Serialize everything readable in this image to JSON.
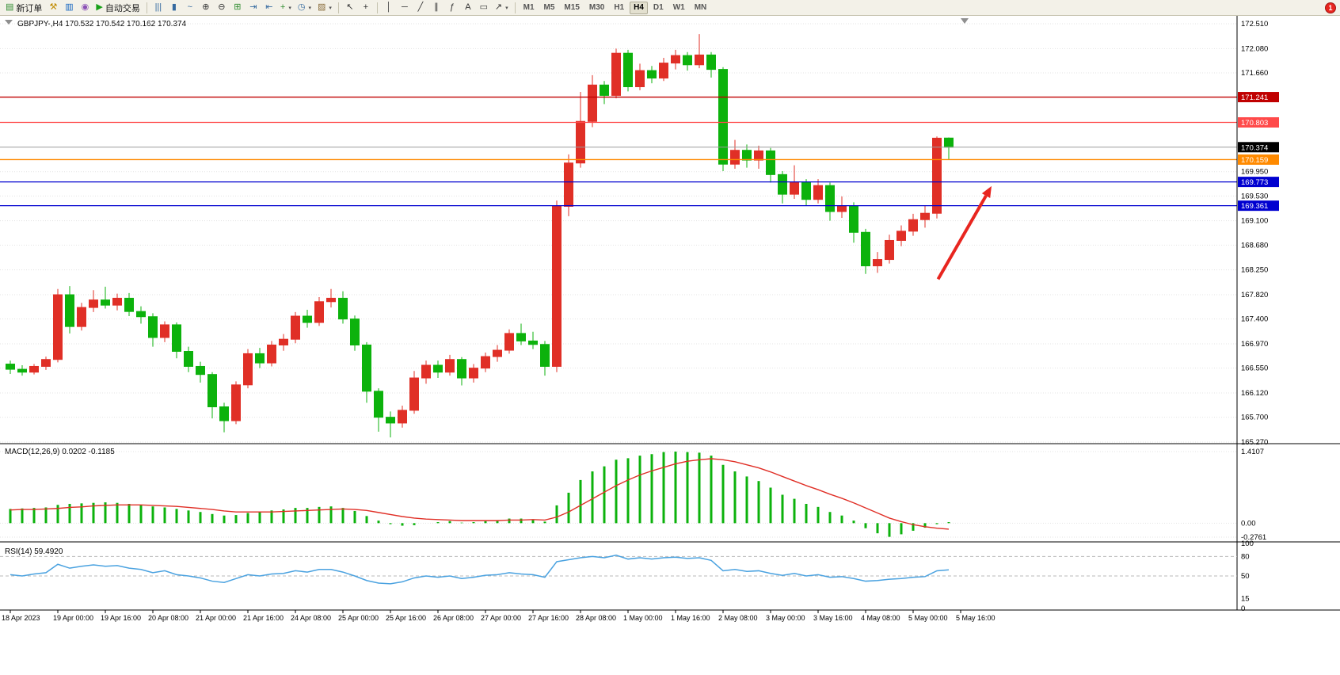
{
  "toolbar": {
    "groups": [
      {
        "name": "trade-group",
        "items": [
          {
            "name": "new-order-button",
            "icon": "new-order-icon",
            "glyph": "▤",
            "color": "#2e8b2e",
            "label": "新订单"
          },
          {
            "name": "styler-button",
            "icon": "hammer-icon",
            "glyph": "⚒",
            "color": "#c08a00"
          },
          {
            "name": "profiles-button",
            "icon": "charts-profile-icon",
            "glyph": "▥",
            "color": "#1565c0"
          },
          {
            "name": "history-button",
            "icon": "history-icon",
            "glyph": "◉",
            "color": "#8a4fb5"
          },
          {
            "name": "auto-trading-button",
            "icon": "play-icon",
            "glyph": "▶",
            "color": "#18a018",
            "label": "自动交易"
          }
        ]
      },
      {
        "name": "chart-mode-group",
        "items": [
          {
            "name": "bar-chart-button",
            "icon": "bar-chart-icon",
            "glyph": "|||",
            "color": "#356aa0"
          },
          {
            "name": "candlestick-chart-button",
            "icon": "candlestick-icon",
            "glyph": "▮",
            "color": "#356aa0"
          },
          {
            "name": "line-chart-button",
            "icon": "line-chart-icon",
            "glyph": "~",
            "color": "#356aa0"
          },
          {
            "name": "zoom-in-button",
            "icon": "zoom-in-icon",
            "glyph": "⊕",
            "color": "#333333"
          },
          {
            "name": "zoom-out-button",
            "icon": "zoom-out-icon",
            "glyph": "⊖",
            "color": "#333333"
          },
          {
            "name": "tile-windows-button",
            "icon": "tile-windows-icon",
            "glyph": "⊞",
            "color": "#2e8b2e"
          },
          {
            "name": "auto-scroll-button",
            "icon": "auto-scroll-icon",
            "glyph": "⇥",
            "color": "#356aa0"
          },
          {
            "name": "chart-shift-button",
            "icon": "chart-shift-icon",
            "glyph": "⇤",
            "color": "#356aa0"
          },
          {
            "name": "indicators-button",
            "icon": "plus-icon",
            "glyph": "+",
            "color": "#2e8b2e",
            "dropdown": true
          },
          {
            "name": "periods-button",
            "icon": "clock-icon",
            "glyph": "◷",
            "color": "#356aa0",
            "dropdown": true
          },
          {
            "name": "templates-button",
            "icon": "template-icon",
            "glyph": "▨",
            "color": "#8a6d3b",
            "dropdown": true
          }
        ]
      },
      {
        "name": "cursor-group",
        "items": [
          {
            "name": "cursor-button",
            "icon": "cursor-icon",
            "glyph": "↖",
            "color": "#333333"
          },
          {
            "name": "crosshair-button",
            "icon": "crosshair-icon",
            "glyph": "+",
            "color": "#333333"
          }
        ]
      },
      {
        "name": "draw-group",
        "items": [
          {
            "name": "vertical-line-button",
            "icon": "vertical-line-icon",
            "glyph": "│",
            "color": "#333333"
          },
          {
            "name": "horizontal-line-button",
            "icon": "horizontal-line-icon",
            "glyph": "─",
            "color": "#333333"
          },
          {
            "name": "trendline-button",
            "icon": "trendline-icon",
            "glyph": "╱",
            "color": "#333333"
          },
          {
            "name": "channel-button",
            "icon": "channel-icon",
            "glyph": "∥",
            "color": "#333333"
          },
          {
            "name": "fibonacci-button",
            "icon": "fibonacci-icon",
            "glyph": "ƒ",
            "color": "#333333"
          },
          {
            "name": "text-button",
            "icon": "text-icon",
            "glyph": "A",
            "color": "#333333"
          },
          {
            "name": "text-label-button",
            "icon": "label-icon",
            "glyph": "▭",
            "color": "#333333"
          },
          {
            "name": "arrows-button",
            "icon": "arrow-icon",
            "glyph": "↗",
            "color": "#333333",
            "dropdown": true
          }
        ]
      }
    ],
    "timeframes": [
      "M1",
      "M5",
      "M15",
      "M30",
      "H1",
      "H4",
      "D1",
      "W1",
      "MN"
    ],
    "active_timeframe": "H4",
    "notification_badge": "1"
  },
  "panels": {
    "symbol_line": "GBPJPY-,H4 170.532 170.542 170.162 170.374",
    "macd_label": "MACD(12,26,9) 0.0202 -0.1185",
    "rsi_label": "RSI(14) 59.4920"
  },
  "colors": {
    "bull": "#e02f26",
    "bear": "#0cb20c",
    "macd_hist": "#0cb20c",
    "macd_signal": "#e02f26",
    "rsi_line": "#4aa2e0",
    "grid": "#e3e3e3",
    "level_silver": "#b9b9b9",
    "bid_line": "#9b9b9b",
    "arrow": "#e8251f"
  },
  "annotation_arrow": {
    "bar_from": 78.1,
    "price_from": 168.09,
    "bar_to": 82.6,
    "price_to": 169.7
  },
  "chart_data": [
    {
      "type": "candlestick",
      "symbol": "GBPJPY-",
      "timeframe": "H4",
      "ohlc_current": {
        "open": "170.532",
        "high": "170.542",
        "low": "170.162",
        "close": "170.374"
      },
      "ylim": [
        165.27,
        172.51
      ],
      "y_ticks": [
        "172.510",
        "172.080",
        "171.660",
        "169.950",
        "169.530",
        "169.100",
        "168.680",
        "168.250",
        "167.820",
        "167.400",
        "166.970",
        "166.550",
        "166.120",
        "165.700",
        "165.270"
      ],
      "x_labels": [
        "18 Apr 2023",
        "19 Apr 00:00",
        "19 Apr 16:00",
        "20 Apr 08:00",
        "21 Apr 00:00",
        "21 Apr 16:00",
        "24 Apr 08:00",
        "25 Apr 00:00",
        "25 Apr 16:00",
        "26 Apr 08:00",
        "27 Apr 00:00",
        "27 Apr 16:00",
        "28 Apr 08:00",
        "1 May 00:00",
        "1 May 16:00",
        "2 May 08:00",
        "3 May 00:00",
        "3 May 16:00",
        "4 May 08:00",
        "5 May 00:00",
        "5 May 16:00"
      ],
      "label_every": 4,
      "candles": [
        [
          166.62,
          166.68,
          166.45,
          166.53
        ],
        [
          166.53,
          166.6,
          166.42,
          166.48
        ],
        [
          166.48,
          166.62,
          166.44,
          166.58
        ],
        [
          166.58,
          166.75,
          166.52,
          166.7
        ],
        [
          166.7,
          167.92,
          166.65,
          167.82
        ],
        [
          167.82,
          167.97,
          167.15,
          167.27
        ],
        [
          167.27,
          167.68,
          167.2,
          167.6
        ],
        [
          167.6,
          167.9,
          167.52,
          167.73
        ],
        [
          167.73,
          167.96,
          167.58,
          167.64
        ],
        [
          167.64,
          167.84,
          167.55,
          167.76
        ],
        [
          167.76,
          167.85,
          167.45,
          167.53
        ],
        [
          167.53,
          167.62,
          167.32,
          167.44
        ],
        [
          167.44,
          167.5,
          166.92,
          167.08
        ],
        [
          167.08,
          167.36,
          167.0,
          167.3
        ],
        [
          167.3,
          167.34,
          166.72,
          166.84
        ],
        [
          166.84,
          166.92,
          166.48,
          166.58
        ],
        [
          166.58,
          166.66,
          166.3,
          166.44
        ],
        [
          166.44,
          166.48,
          165.68,
          165.88
        ],
        [
          165.88,
          165.95,
          165.44,
          165.64
        ],
        [
          165.64,
          166.32,
          165.58,
          166.26
        ],
        [
          166.26,
          166.88,
          166.2,
          166.8
        ],
        [
          166.8,
          166.9,
          166.55,
          166.64
        ],
        [
          166.64,
          167.02,
          166.58,
          166.95
        ],
        [
          166.95,
          167.14,
          166.85,
          167.05
        ],
        [
          167.05,
          167.52,
          166.98,
          167.45
        ],
        [
          167.45,
          167.56,
          167.25,
          167.34
        ],
        [
          167.34,
          167.78,
          167.28,
          167.7
        ],
        [
          167.7,
          167.92,
          167.6,
          167.76
        ],
        [
          167.76,
          167.88,
          167.32,
          167.4
        ],
        [
          167.4,
          167.46,
          166.85,
          166.95
        ],
        [
          166.95,
          167.0,
          165.95,
          166.15
        ],
        [
          166.15,
          166.2,
          165.45,
          165.7
        ],
        [
          165.7,
          165.8,
          165.35,
          165.6
        ],
        [
          165.6,
          165.9,
          165.52,
          165.82
        ],
        [
          165.82,
          166.5,
          165.76,
          166.38
        ],
        [
          166.38,
          166.68,
          166.28,
          166.6
        ],
        [
          166.6,
          166.68,
          166.38,
          166.48
        ],
        [
          166.48,
          166.78,
          166.42,
          166.7
        ],
        [
          166.7,
          166.74,
          166.25,
          166.38
        ],
        [
          166.38,
          166.62,
          166.3,
          166.55
        ],
        [
          166.55,
          166.82,
          166.48,
          166.75
        ],
        [
          166.75,
          166.95,
          166.66,
          166.86
        ],
        [
          166.86,
          167.22,
          166.8,
          167.15
        ],
        [
          167.15,
          167.32,
          166.95,
          167.02
        ],
        [
          167.02,
          167.18,
          166.88,
          166.96
        ],
        [
          166.96,
          167.02,
          166.42,
          166.58
        ],
        [
          166.58,
          169.45,
          166.48,
          169.35
        ],
        [
          169.35,
          170.25,
          169.18,
          170.1
        ],
        [
          170.1,
          171.33,
          170.02,
          170.82
        ],
        [
          170.82,
          171.62,
          170.72,
          171.45
        ],
        [
          171.45,
          171.52,
          171.12,
          171.27
        ],
        [
          171.27,
          172.08,
          171.22,
          172.0
        ],
        [
          172.0,
          172.06,
          171.34,
          171.42
        ],
        [
          171.42,
          171.82,
          171.36,
          171.7
        ],
        [
          171.7,
          171.78,
          171.48,
          171.57
        ],
        [
          171.57,
          171.92,
          171.52,
          171.83
        ],
        [
          171.83,
          172.06,
          171.72,
          171.96
        ],
        [
          171.96,
          172.02,
          171.7,
          171.8
        ],
        [
          171.8,
          172.33,
          171.74,
          171.97
        ],
        [
          171.97,
          172.02,
          171.58,
          171.72
        ],
        [
          171.72,
          171.76,
          169.96,
          170.08
        ],
        [
          170.08,
          170.5,
          170.0,
          170.32
        ],
        [
          170.32,
          170.42,
          170.02,
          170.15
        ],
        [
          170.15,
          170.4,
          170.0,
          170.31
        ],
        [
          170.31,
          170.36,
          169.76,
          169.9
        ],
        [
          169.9,
          169.96,
          169.4,
          169.56
        ],
        [
          169.56,
          170.06,
          169.48,
          169.76
        ],
        [
          169.76,
          169.82,
          169.36,
          169.47
        ],
        [
          169.47,
          169.82,
          169.4,
          169.71
        ],
        [
          169.71,
          169.76,
          169.1,
          169.26
        ],
        [
          169.26,
          169.52,
          169.15,
          169.36
        ],
        [
          169.36,
          169.42,
          168.72,
          168.9
        ],
        [
          168.9,
          168.96,
          168.18,
          168.32
        ],
        [
          168.32,
          168.56,
          168.2,
          168.43
        ],
        [
          168.43,
          168.86,
          168.36,
          168.76
        ],
        [
          168.76,
          169.02,
          168.66,
          168.92
        ],
        [
          168.92,
          169.22,
          168.84,
          169.12
        ],
        [
          169.12,
          169.36,
          168.98,
          169.23
        ],
        [
          169.23,
          170.56,
          169.14,
          170.53
        ],
        [
          170.532,
          170.542,
          170.162,
          170.374
        ]
      ],
      "levels": [
        {
          "name": "resistance-line-1",
          "price": 171.241,
          "label": "171.241",
          "color": "#c00000"
        },
        {
          "name": "resistance-line-2",
          "price": 170.803,
          "label": "170.803",
          "color": "#ff4a4a"
        },
        {
          "name": "bid-price-line",
          "price": 170.374,
          "label": "170.374",
          "color": "#9b9b9b",
          "tag": "#000000",
          "bid": true
        },
        {
          "name": "pivot-line",
          "price": 170.159,
          "label": "170.159",
          "color": "#ff8a00"
        },
        {
          "name": "support-line-1",
          "price": 169.773,
          "label": "169.773",
          "color": "#0000d0"
        },
        {
          "name": "support-line-2",
          "price": 169.361,
          "label": "169.361",
          "color": "#0000d0"
        }
      ]
    },
    {
      "type": "macd",
      "name": "MACD(12,26,9)",
      "value": 0.0202,
      "signal_value": -0.1185,
      "ylim": [
        -0.2761,
        1.4107
      ],
      "y_ticks": [
        "1.4107",
        "0.00",
        "-0.2761"
      ],
      "histogram": [
        0.28,
        0.29,
        0.3,
        0.31,
        0.36,
        0.38,
        0.39,
        0.4,
        0.41,
        0.4,
        0.38,
        0.36,
        0.33,
        0.31,
        0.28,
        0.25,
        0.22,
        0.18,
        0.15,
        0.16,
        0.2,
        0.22,
        0.25,
        0.27,
        0.3,
        0.3,
        0.32,
        0.33,
        0.3,
        0.24,
        0.14,
        0.05,
        -0.02,
        -0.05,
        -0.04,
        0.0,
        0.02,
        0.04,
        0.01,
        0.02,
        0.04,
        0.06,
        0.09,
        0.09,
        0.07,
        0.03,
        0.35,
        0.6,
        0.85,
        1.02,
        1.12,
        1.25,
        1.28,
        1.33,
        1.36,
        1.4,
        1.41,
        1.4,
        1.39,
        1.33,
        1.15,
        1.02,
        0.92,
        0.83,
        0.7,
        0.56,
        0.48,
        0.38,
        0.32,
        0.22,
        0.15,
        0.05,
        -0.1,
        -0.2,
        -0.27,
        -0.22,
        -0.15,
        -0.09,
        -0.02,
        0.0202
      ],
      "signal": [
        0.26,
        0.27,
        0.27,
        0.28,
        0.29,
        0.31,
        0.32,
        0.34,
        0.35,
        0.36,
        0.36,
        0.36,
        0.35,
        0.34,
        0.33,
        0.31,
        0.29,
        0.27,
        0.24,
        0.22,
        0.22,
        0.22,
        0.22,
        0.23,
        0.24,
        0.25,
        0.26,
        0.27,
        0.28,
        0.27,
        0.25,
        0.21,
        0.17,
        0.13,
        0.1,
        0.08,
        0.07,
        0.06,
        0.05,
        0.05,
        0.05,
        0.05,
        0.06,
        0.06,
        0.07,
        0.06,
        0.12,
        0.22,
        0.35,
        0.48,
        0.61,
        0.74,
        0.85,
        0.95,
        1.03,
        1.1,
        1.17,
        1.22,
        1.25,
        1.27,
        1.25,
        1.21,
        1.15,
        1.09,
        1.01,
        0.92,
        0.83,
        0.74,
        0.66,
        0.57,
        0.49,
        0.4,
        0.3,
        0.2,
        0.1,
        0.03,
        -0.03,
        -0.07,
        -0.1,
        -0.1185
      ]
    },
    {
      "type": "rsi",
      "name": "RSI(14)",
      "value": 59.492,
      "ylim": [
        0,
        100
      ],
      "y_ticks": [
        "100",
        "80",
        "50",
        "15",
        "0"
      ],
      "levels": [
        80,
        50
      ],
      "values": [
        52,
        50,
        53,
        55,
        68,
        62,
        65,
        67,
        65,
        66,
        62,
        60,
        55,
        58,
        52,
        50,
        47,
        42,
        40,
        46,
        52,
        50,
        53,
        54,
        58,
        56,
        60,
        60,
        56,
        50,
        43,
        39,
        38,
        41,
        47,
        50,
        48,
        50,
        46,
        48,
        51,
        52,
        55,
        53,
        52,
        48,
        72,
        75,
        78,
        80,
        78,
        82,
        76,
        78,
        76,
        78,
        79,
        77,
        78,
        74,
        58,
        60,
        57,
        58,
        54,
        51,
        54,
        50,
        52,
        48,
        49,
        46,
        42,
        43,
        45,
        46,
        48,
        49,
        58,
        59.49
      ]
    }
  ]
}
